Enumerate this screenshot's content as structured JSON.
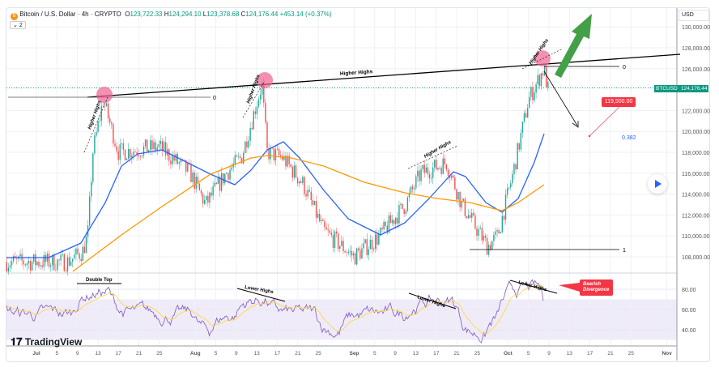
{
  "header": {
    "symbol": "Bitcoin / U.S. Dollar",
    "interval": "4h",
    "exchange": "CRYPTO",
    "open_label": "O",
    "open": "123,722.33",
    "high_label": "H",
    "high": "124,294.10",
    "low_label": "L",
    "low": "123,378.68",
    "close_label": "C",
    "close": "124,176.44",
    "change": "+453.14 (+0.37%)",
    "indicator_count": "2",
    "coin_icon": "B"
  },
  "axis": {
    "currency": "USD",
    "price_labels": [
      "130,000.00",
      "128,000.00",
      "126,000.00",
      "122,000.00",
      "120,000.00",
      "118,000.00",
      "116,000.00",
      "114,000.00",
      "112,000.00",
      "110,000.00",
      "108,000.00"
    ],
    "price_values": [
      130000,
      128000,
      126000,
      122000,
      120000,
      118000,
      116000,
      114000,
      112000,
      110000,
      108000
    ],
    "rsi_labels": [
      "80.00",
      "60.00",
      "40.00"
    ],
    "rsi_values": [
      80,
      60,
      40
    ],
    "time_labels": [
      "Jul",
      "5",
      "9",
      "13",
      "17",
      "21",
      "25",
      "Aug",
      "5",
      "9",
      "13",
      "17",
      "21",
      "25",
      "Sep",
      "5",
      "9",
      "13",
      "17",
      "21",
      "25",
      "Oct",
      "5",
      "9",
      "13",
      "17",
      "21",
      "25",
      "Nov"
    ],
    "time_days": [
      0,
      4,
      8,
      12,
      16,
      20,
      24,
      31,
      35,
      39,
      43,
      47,
      51,
      55,
      62,
      66,
      70,
      74,
      78,
      82,
      86,
      92,
      96,
      100,
      104,
      108,
      112,
      116,
      123
    ]
  },
  "price_tag": {
    "symbol": "BTCUSD",
    "price": "124,176.44"
  },
  "chart_data": {
    "type": "candlestick",
    "price_path": [
      [
        0,
        107500
      ],
      [
        6,
        107500
      ],
      [
        9,
        108500
      ],
      [
        10,
        110000
      ],
      [
        11,
        118000
      ],
      [
        13,
        123000
      ],
      [
        16,
        118000
      ],
      [
        24,
        118500
      ],
      [
        30,
        116000
      ],
      [
        33,
        113000
      ],
      [
        37,
        116000
      ],
      [
        40,
        117500
      ],
      [
        44,
        124500
      ],
      [
        45,
        118000
      ],
      [
        48,
        117500
      ],
      [
        52,
        115000
      ],
      [
        56,
        110500
      ],
      [
        62,
        108000
      ],
      [
        67,
        110000
      ],
      [
        72,
        113000
      ],
      [
        75,
        116000
      ],
      [
        80,
        117000
      ],
      [
        83,
        113000
      ],
      [
        88,
        109000
      ],
      [
        90,
        110000
      ],
      [
        93,
        116000
      ],
      [
        96,
        123000
      ],
      [
        99,
        126000
      ],
      [
        100,
        123500
      ]
    ],
    "ma_fast_color": "#2962ff",
    "ma_slow_color": "#ff9800",
    "up_color": "#26a69a",
    "down_color": "#ef5350"
  },
  "annotations": {
    "higher_highs": "Higher Highs",
    "higher_highs_short": "Higher Highs",
    "fib_0": "0",
    "fib_1": "1",
    "fib_0382": "0.382",
    "target": "119,500.00",
    "double_top": "Double Top",
    "lower_highs": "Lower Highs",
    "bearish_divergence": "Bearish Divergence"
  },
  "branding": {
    "logo": "TradingView"
  }
}
